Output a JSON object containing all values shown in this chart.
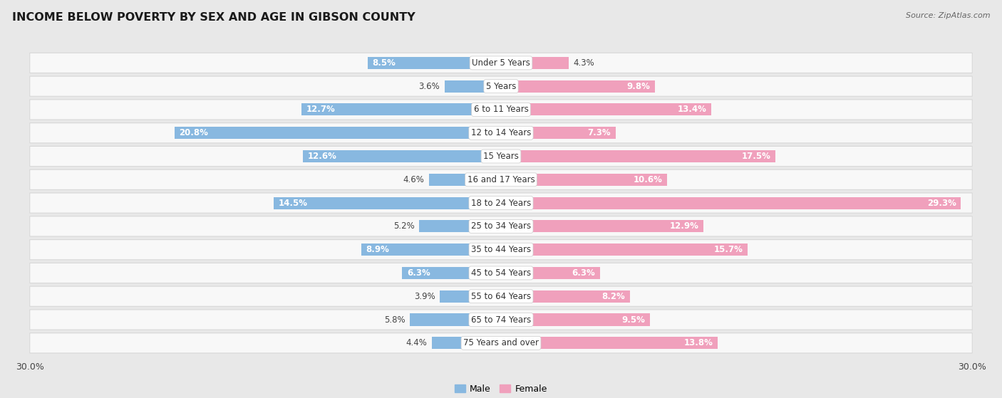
{
  "title": "INCOME BELOW POVERTY BY SEX AND AGE IN GIBSON COUNTY",
  "source": "Source: ZipAtlas.com",
  "categories": [
    "Under 5 Years",
    "5 Years",
    "6 to 11 Years",
    "12 to 14 Years",
    "15 Years",
    "16 and 17 Years",
    "18 to 24 Years",
    "25 to 34 Years",
    "35 to 44 Years",
    "45 to 54 Years",
    "55 to 64 Years",
    "65 to 74 Years",
    "75 Years and over"
  ],
  "male": [
    8.5,
    3.6,
    12.7,
    20.8,
    12.6,
    4.6,
    14.5,
    5.2,
    8.9,
    6.3,
    3.9,
    5.8,
    4.4
  ],
  "female": [
    4.3,
    9.8,
    13.4,
    7.3,
    17.5,
    10.6,
    29.3,
    12.9,
    15.7,
    6.3,
    8.2,
    9.5,
    13.8
  ],
  "male_color": "#88b8e0",
  "female_color": "#f0a0bc",
  "axis_max": 30.0,
  "outer_bg": "#e8e8e8",
  "row_bg": "#f8f8f8",
  "row_border": "#d8d8d8",
  "title_fontsize": 11.5,
  "label_fontsize": 8.5,
  "category_fontsize": 8.5,
  "legend_fontsize": 9,
  "source_fontsize": 8
}
